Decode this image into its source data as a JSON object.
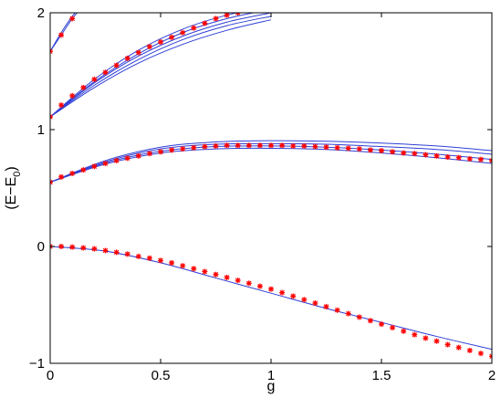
{
  "chart_data": {
    "type": "line",
    "xlabel": "g",
    "ylabel_main": "(E−E",
    "ylabel_sub": "0",
    "ylabel_close": ")",
    "xlim": [
      0,
      2
    ],
    "ylim": [
      -1,
      2
    ],
    "xticks": [
      0,
      0.5,
      1,
      1.5,
      2
    ],
    "yticks": [
      -1,
      0,
      1,
      2
    ],
    "xtick_labels": [
      "0",
      "0.5",
      "1",
      "1.5",
      "2"
    ],
    "ytick_labels": [
      "−1",
      "0",
      "1",
      "2"
    ],
    "grid": false,
    "legend": "none",
    "line_color": "#2f3fd6",
    "marker_color": "#ff0000",
    "marker_symbol": "*",
    "marker_x": [
      0,
      0.05,
      0.1,
      0.15,
      0.2,
      0.25,
      0.3,
      0.35,
      0.4,
      0.45,
      0.5,
      0.55,
      0.6,
      0.65,
      0.7,
      0.75,
      0.8,
      0.85,
      0.9,
      0.95,
      1,
      1.05,
      1.1,
      1.15,
      1.2,
      1.25,
      1.3,
      1.35,
      1.4,
      1.45,
      1.5,
      1.55,
      1.6,
      1.65,
      1.7,
      1.75,
      1.8,
      1.85,
      1.9,
      1.95,
      2
    ],
    "branches": [
      {
        "line_x": [
          0,
          0.25,
          0.5,
          0.75,
          1,
          1.25,
          1.5,
          1.75,
          2
        ],
        "lines": [
          [
            0,
            -0.04,
            -0.14,
            -0.27,
            -0.4,
            -0.53,
            -0.65,
            -0.77,
            -0.88
          ]
        ],
        "marker_y": [
          0,
          0,
          -0.005,
          -0.012,
          -0.02,
          -0.035,
          -0.05,
          -0.065,
          -0.085,
          -0.1,
          -0.12,
          -0.14,
          -0.165,
          -0.19,
          -0.215,
          -0.24,
          -0.265,
          -0.29,
          -0.315,
          -0.34,
          -0.365,
          -0.395,
          -0.425,
          -0.455,
          -0.485,
          -0.515,
          -0.545,
          -0.575,
          -0.605,
          -0.635,
          -0.665,
          -0.695,
          -0.725,
          -0.755,
          -0.785,
          -0.81,
          -0.84,
          -0.865,
          -0.89,
          -0.915,
          -0.94
        ],
        "marker_count": 41
      },
      {
        "line_x": [
          0,
          0.25,
          0.5,
          0.75,
          1,
          1.25,
          1.5,
          1.75,
          2
        ],
        "lines": [
          [
            0.55,
            0.735,
            0.85,
            0.895,
            0.905,
            0.9,
            0.885,
            0.86,
            0.82
          ],
          [
            0.55,
            0.725,
            0.835,
            0.875,
            0.88,
            0.875,
            0.855,
            0.83,
            0.79
          ],
          [
            0.55,
            0.715,
            0.815,
            0.855,
            0.86,
            0.85,
            0.825,
            0.79,
            0.745
          ],
          [
            0.55,
            0.705,
            0.8,
            0.835,
            0.84,
            0.83,
            0.8,
            0.76,
            0.71
          ]
        ],
        "marker_y": [
          0.55,
          0.595,
          0.625,
          0.655,
          0.685,
          0.71,
          0.735,
          0.755,
          0.775,
          0.795,
          0.81,
          0.825,
          0.835,
          0.845,
          0.855,
          0.86,
          0.865,
          0.865,
          0.865,
          0.865,
          0.865,
          0.865,
          0.86,
          0.86,
          0.855,
          0.85,
          0.845,
          0.84,
          0.835,
          0.825,
          0.82,
          0.81,
          0.8,
          0.795,
          0.785,
          0.775,
          0.765,
          0.76,
          0.75,
          0.745,
          0.735
        ],
        "marker_count": 41
      },
      {
        "line_x": [
          0,
          0.2,
          0.4,
          0.6,
          0.8,
          1.0
        ],
        "lines": [
          [
            1.11,
            1.43,
            1.68,
            1.86,
            1.98,
            2.06
          ],
          [
            1.11,
            1.41,
            1.65,
            1.83,
            1.95,
            2.03
          ],
          [
            1.11,
            1.4,
            1.63,
            1.8,
            1.92,
            2.0
          ],
          [
            1.11,
            1.38,
            1.6,
            1.77,
            1.89,
            1.97
          ],
          [
            1.11,
            1.36,
            1.57,
            1.73,
            1.85,
            1.94
          ]
        ],
        "marker_y": [
          1.11,
          1.21,
          1.29,
          1.36,
          1.43,
          1.49,
          1.55,
          1.61,
          1.66,
          1.71,
          1.75,
          1.79,
          1.83,
          1.87,
          1.91,
          1.95,
          1.98,
          2.0
        ],
        "marker_count": 18
      },
      {
        "line_x": [
          0,
          0.05,
          0.1,
          0.15
        ],
        "lines": [
          [
            1.67,
            1.83,
            1.97,
            2.08
          ],
          [
            1.67,
            1.81,
            1.95,
            2.06
          ]
        ],
        "marker_y": [
          1.67,
          1.81,
          1.95
        ],
        "marker_count": 3
      }
    ]
  }
}
